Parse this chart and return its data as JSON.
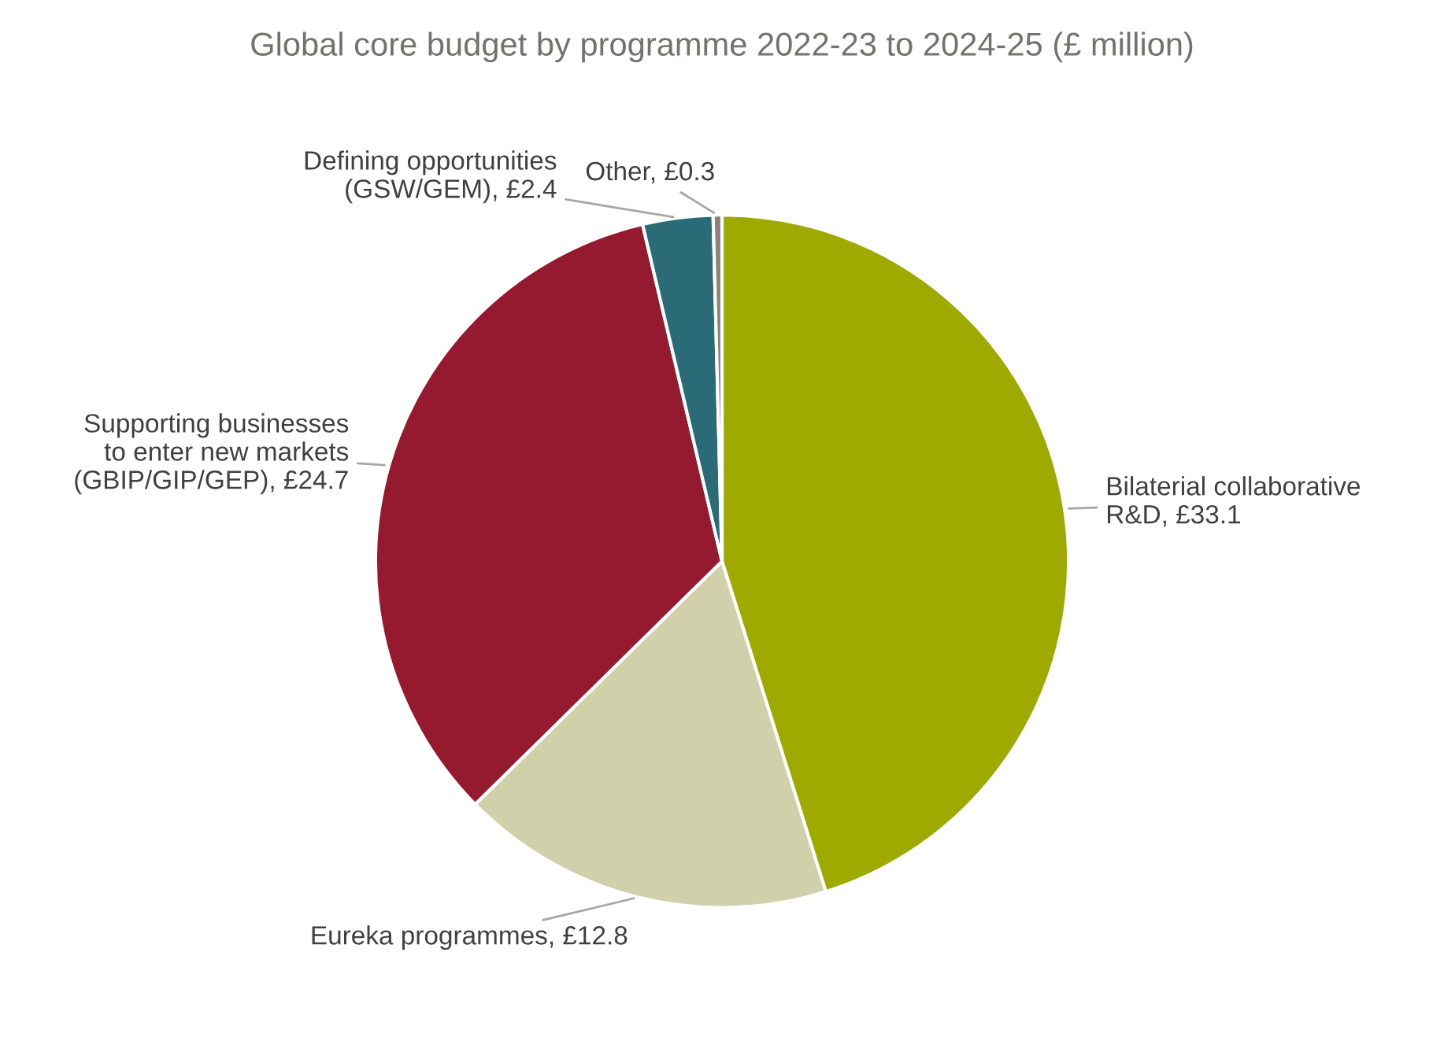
{
  "chart_data": {
    "type": "pie",
    "title": "Global core budget by programme 2022-23 to 2024-25 (£ million)",
    "categories": [
      "Bilaterial collaborative\nR&D",
      "Eureka programmes",
      "Supporting businesses\nto enter new markets\n(GBIP/GIP/GEP)",
      "Defining opportunities\n(GSW/GEM)",
      "Other"
    ],
    "values": [
      33.1,
      12.8,
      24.7,
      2.4,
      0.3
    ],
    "value_labels": [
      "£33.1",
      "£12.8",
      "£24.7",
      "£2.4",
      "£0.3"
    ],
    "colors": [
      "#9faa00",
      "#d0d0ab",
      "#951a2f",
      "#2a6b77",
      "#8c8275"
    ]
  }
}
